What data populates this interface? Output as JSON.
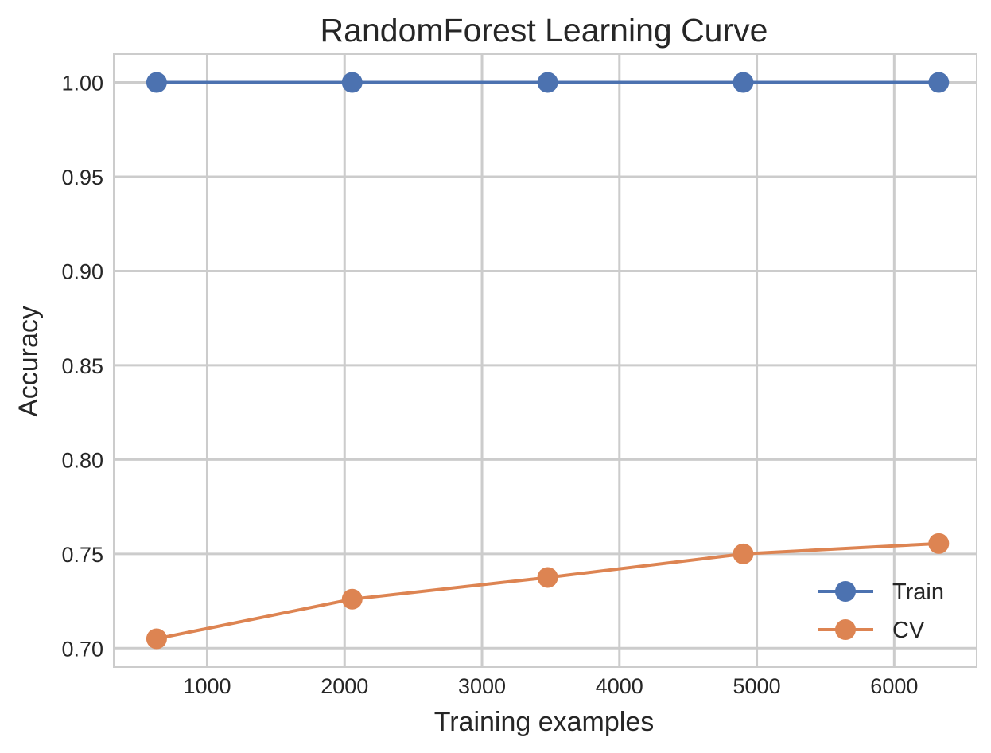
{
  "chart_data": {
    "type": "line",
    "title": "RandomForest Learning Curve",
    "xlabel": "Training examples",
    "ylabel": "Accuracy",
    "x": [
      632,
      2055,
      3478,
      4901,
      6324
    ],
    "series": [
      {
        "name": "Train",
        "values": [
          1.0,
          1.0,
          1.0,
          1.0,
          1.0
        ],
        "color": "#4c72b0"
      },
      {
        "name": "CV",
        "values": [
          0.705,
          0.726,
          0.7375,
          0.75,
          0.7555
        ],
        "color": "#dd8452"
      }
    ],
    "xlim": [
      320,
      6600
    ],
    "ylim": [
      0.69,
      1.015
    ],
    "xticks": [
      1000,
      2000,
      3000,
      4000,
      5000,
      6000
    ],
    "xtick_labels": [
      "1000",
      "2000",
      "3000",
      "4000",
      "5000",
      "6000"
    ],
    "yticks": [
      0.7,
      0.75,
      0.8,
      0.85,
      0.9,
      0.95,
      1.0
    ],
    "ytick_labels": [
      "0.70",
      "0.75",
      "0.80",
      "0.85",
      "0.90",
      "0.95",
      "1.00"
    ],
    "grid": true,
    "legend_position": "bottom-right",
    "grid_color": "#cccccc",
    "text_color": "#262626"
  }
}
